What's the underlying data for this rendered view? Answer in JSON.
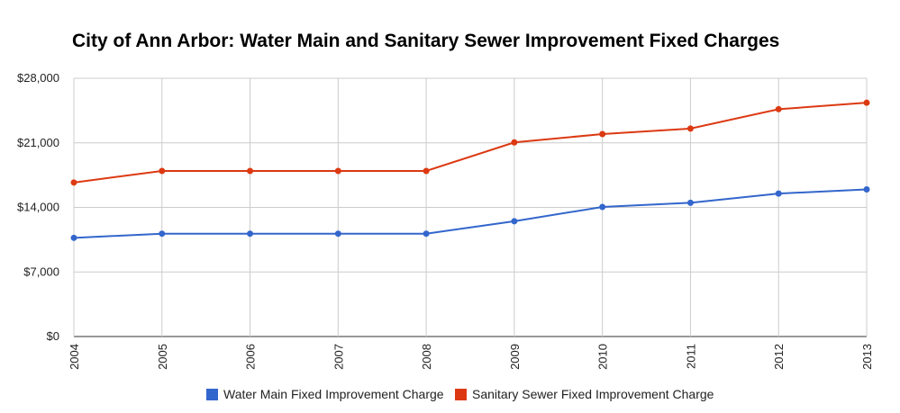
{
  "chart_data": {
    "type": "line",
    "title": "City of Ann Arbor: Water Main and Sanitary Sewer Improvement Fixed Charges",
    "xlabel": "",
    "ylabel": "",
    "categories": [
      "2004",
      "2005",
      "2006",
      "2007",
      "2008",
      "2009",
      "2010",
      "2011",
      "2012",
      "2013"
    ],
    "ylim": [
      0,
      28000
    ],
    "yticks": [
      0,
      7000,
      14000,
      21000,
      28000
    ],
    "ytick_labels": [
      "$0",
      "$7,000",
      "$14,000",
      "$21,000",
      "$28,000"
    ],
    "grid": true,
    "legend_position": "bottom",
    "series": [
      {
        "name": "Water Main Fixed Improvement Charge",
        "color": "#3366cc",
        "values": [
          10700,
          11150,
          11150,
          11150,
          11150,
          12500,
          14050,
          14500,
          15500,
          15950
        ]
      },
      {
        "name": "Sanitary Sewer Fixed Improvement Charge",
        "color": "#dc3912",
        "values": [
          16700,
          17950,
          17950,
          17950,
          17950,
          21050,
          21950,
          22550,
          24650,
          25350
        ]
      }
    ]
  }
}
